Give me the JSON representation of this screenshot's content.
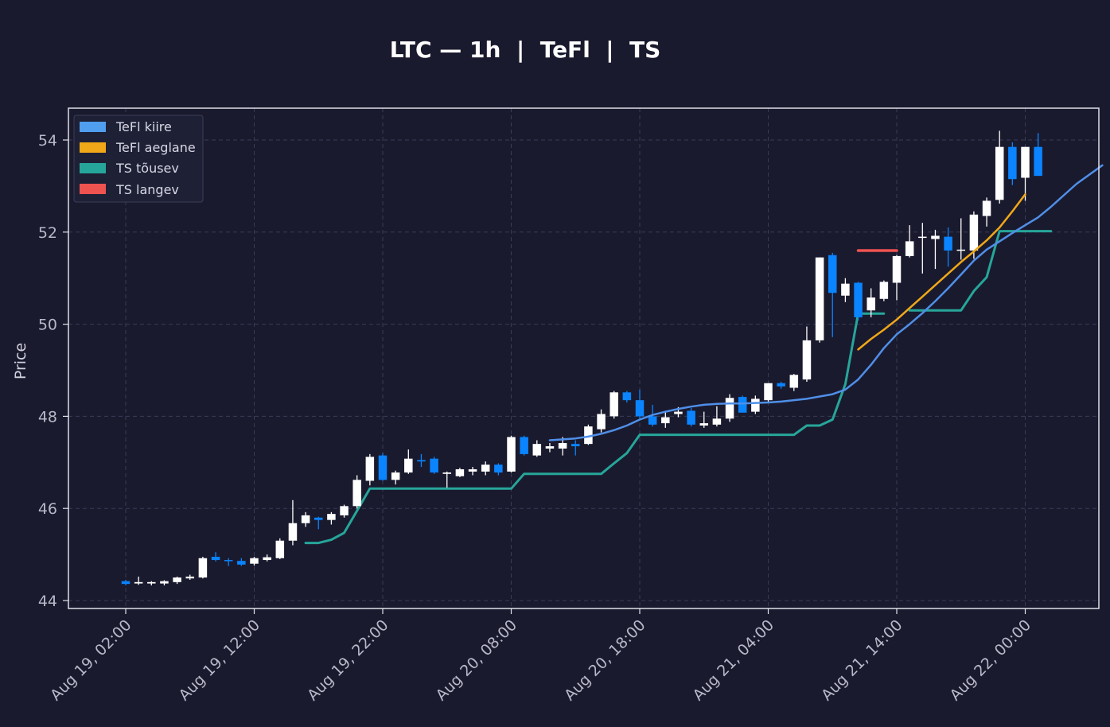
{
  "chart_data": {
    "type": "candlestick",
    "title": "LTC — 1h  |  TeFl  |  TS",
    "ylabel": "Price",
    "xlabel": "",
    "ylim": [
      43.8,
      54.7
    ],
    "yticks": [
      44,
      46,
      48,
      50,
      52,
      54
    ],
    "xticks": [
      "Aug 19, 02:00",
      "Aug 19, 12:00",
      "Aug 19, 22:00",
      "Aug 20, 08:00",
      "Aug 20, 18:00",
      "Aug 21, 04:00",
      "Aug 21, 14:00",
      "Aug 22, 00:00"
    ],
    "x_start": "Aug 19, 02:00",
    "x_interval": "1h",
    "grid": true,
    "legend_position": "top-left",
    "colors": {
      "background": "#1a1a2e",
      "up_candle": "#ffffff",
      "down_candle": "#0a84ff",
      "tefl_fast": "#4f8fe8",
      "tefl_slow": "#f0a818",
      "ts_up": "#26a69a",
      "ts_down": "#ef5350",
      "grid": "#3a3a58",
      "axes": "#e0e0e8"
    },
    "legend": [
      {
        "label": "TeFl kiire",
        "color": "#4f9ef0"
      },
      {
        "label": "TeFl aeglane",
        "color": "#f0a818"
      },
      {
        "label": "TS tõusev",
        "color": "#26a69a"
      },
      {
        "label": "TS langev",
        "color": "#ef5350"
      }
    ],
    "candles": [
      [
        44.42,
        44.45,
        44.33,
        44.36
      ],
      [
        44.37,
        44.52,
        44.34,
        44.4
      ],
      [
        44.37,
        44.42,
        44.33,
        44.4
      ],
      [
        44.37,
        44.44,
        44.33,
        44.42
      ],
      [
        44.4,
        44.52,
        44.36,
        44.5
      ],
      [
        44.48,
        44.56,
        44.45,
        44.52
      ],
      [
        44.5,
        44.95,
        44.48,
        44.92
      ],
      [
        44.95,
        45.05,
        44.85,
        44.88
      ],
      [
        44.88,
        44.92,
        44.75,
        44.86
      ],
      [
        44.86,
        44.92,
        44.75,
        44.78
      ],
      [
        44.8,
        44.95,
        44.76,
        44.92
      ],
      [
        44.88,
        45.0,
        44.85,
        44.94
      ],
      [
        44.92,
        45.35,
        44.9,
        45.3
      ],
      [
        45.3,
        46.18,
        45.2,
        45.68
      ],
      [
        45.68,
        45.92,
        45.6,
        45.85
      ],
      [
        45.8,
        45.82,
        45.55,
        45.75
      ],
      [
        45.75,
        45.92,
        45.65,
        45.88
      ],
      [
        45.85,
        46.08,
        45.8,
        46.05
      ],
      [
        46.05,
        46.72,
        46.0,
        46.62
      ],
      [
        46.6,
        47.18,
        46.5,
        47.12
      ],
      [
        47.15,
        47.2,
        46.6,
        46.62
      ],
      [
        46.62,
        46.82,
        46.52,
        46.78
      ],
      [
        46.78,
        47.28,
        46.75,
        47.08
      ],
      [
        47.05,
        47.18,
        46.9,
        47.02
      ],
      [
        47.08,
        47.12,
        46.75,
        46.78
      ],
      [
        46.75,
        46.8,
        46.45,
        46.78
      ],
      [
        46.7,
        46.88,
        46.68,
        46.85
      ],
      [
        46.8,
        46.9,
        46.72,
        46.85
      ],
      [
        46.8,
        47.02,
        46.72,
        46.95
      ],
      [
        46.95,
        46.98,
        46.72,
        46.78
      ],
      [
        46.8,
        47.58,
        46.78,
        47.55
      ],
      [
        47.55,
        47.58,
        47.15,
        47.18
      ],
      [
        47.15,
        47.48,
        47.12,
        47.4
      ],
      [
        47.3,
        47.42,
        47.22,
        47.35
      ],
      [
        47.3,
        47.55,
        47.15,
        47.42
      ],
      [
        47.4,
        47.48,
        47.15,
        47.35
      ],
      [
        47.4,
        47.82,
        47.38,
        47.78
      ],
      [
        47.72,
        48.15,
        47.65,
        48.05
      ],
      [
        48.0,
        48.55,
        47.95,
        48.52
      ],
      [
        48.52,
        48.55,
        48.3,
        48.35
      ],
      [
        48.35,
        48.58,
        47.95,
        48.0
      ],
      [
        48.0,
        48.25,
        47.78,
        47.82
      ],
      [
        47.85,
        48.1,
        47.75,
        47.98
      ],
      [
        48.05,
        48.2,
        47.98,
        48.1
      ],
      [
        48.12,
        48.18,
        47.78,
        47.82
      ],
      [
        47.8,
        48.1,
        47.75,
        47.85
      ],
      [
        47.82,
        48.22,
        47.78,
        47.95
      ],
      [
        47.95,
        48.48,
        47.88,
        48.4
      ],
      [
        48.42,
        48.45,
        48.08,
        48.08
      ],
      [
        48.1,
        48.45,
        48.05,
        48.38
      ],
      [
        48.35,
        48.72,
        48.3,
        48.72
      ],
      [
        48.72,
        48.75,
        48.6,
        48.65
      ],
      [
        48.62,
        48.92,
        48.55,
        48.9
      ],
      [
        48.8,
        49.95,
        48.75,
        49.65
      ],
      [
        49.65,
        51.45,
        49.6,
        51.45
      ],
      [
        51.5,
        51.55,
        49.72,
        50.68
      ],
      [
        50.62,
        51.0,
        50.48,
        50.88
      ],
      [
        50.9,
        50.92,
        50.08,
        50.15
      ],
      [
        50.3,
        50.78,
        50.15,
        50.58
      ],
      [
        50.55,
        50.95,
        50.5,
        50.92
      ],
      [
        50.9,
        51.5,
        50.52,
        51.48
      ],
      [
        51.48,
        52.15,
        51.45,
        51.8
      ],
      [
        51.88,
        52.2,
        51.1,
        51.9
      ],
      [
        51.85,
        52.05,
        51.2,
        51.92
      ],
      [
        51.9,
        52.1,
        51.25,
        51.6
      ],
      [
        51.62,
        52.3,
        51.4,
        51.62
      ],
      [
        51.6,
        52.45,
        51.42,
        52.38
      ],
      [
        52.35,
        52.75,
        52.12,
        52.68
      ],
      [
        52.7,
        54.2,
        52.62,
        53.85
      ],
      [
        53.85,
        53.95,
        53.02,
        53.15
      ],
      [
        53.18,
        53.85,
        52.68,
        53.85
      ],
      [
        53.85,
        54.15,
        53.25,
        53.22
      ]
    ],
    "series": [
      {
        "name": "TeFl kiire",
        "start": 33,
        "values": [
          47.48,
          47.5,
          47.52,
          47.56,
          47.62,
          47.7,
          47.8,
          47.93,
          48.03,
          48.1,
          48.16,
          48.21,
          48.25,
          48.27,
          48.28,
          48.28,
          48.29,
          48.3,
          48.32,
          48.35,
          48.38,
          48.43,
          48.48,
          48.58,
          48.8,
          49.12,
          49.48,
          49.78,
          50.0,
          50.24,
          50.5,
          50.78,
          51.08,
          51.38,
          51.62,
          51.8,
          51.98,
          52.15,
          52.32,
          52.55,
          52.8,
          53.05,
          53.25,
          53.45
        ]
      },
      {
        "name": "TeFl aeglane",
        "start": 57,
        "values": [
          49.45,
          49.68,
          49.88,
          50.1,
          50.35,
          50.6,
          50.85,
          51.1,
          51.35,
          51.58,
          51.82,
          52.1,
          52.45,
          52.82
        ]
      },
      {
        "name": "TS tõusev",
        "segments": [
          {
            "start": 14,
            "values": [
              45.25,
              45.25,
              45.32,
              45.47,
              45.95,
              46.43,
              46.43,
              46.43,
              46.43,
              46.43,
              46.43,
              46.43,
              46.43,
              46.43,
              46.43,
              46.43,
              46.43,
              46.75,
              46.75,
              46.75,
              46.75,
              46.75,
              46.75,
              46.75,
              46.98,
              47.2,
              47.6,
              47.6,
              47.6,
              47.6,
              47.6,
              47.6,
              47.6,
              47.6,
              47.6,
              47.6,
              47.6,
              47.6,
              47.6,
              47.8,
              47.8,
              47.93,
              48.7,
              50.23,
              50.23,
              50.23
            ]
          },
          {
            "start": 61,
            "values": [
              50.3,
              50.3,
              50.3,
              50.3,
              50.3,
              50.72,
              51.02,
              52.02,
              52.02,
              52.02,
              52.02,
              52.02
            ]
          }
        ]
      },
      {
        "name": "TS langev",
        "segments": [
          {
            "start": 57,
            "values": [
              51.6,
              51.6,
              51.6,
              51.6
            ]
          }
        ]
      }
    ]
  }
}
